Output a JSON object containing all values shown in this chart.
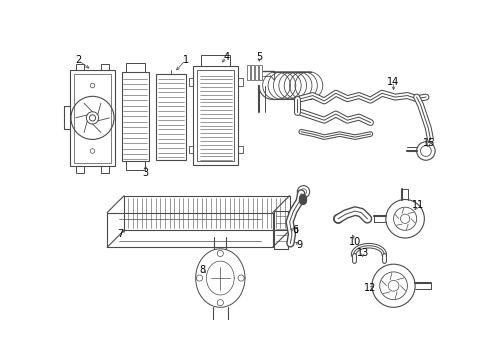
{
  "background_color": "#ffffff",
  "line_color": "#4a4a4a",
  "text_color": "#000000",
  "fig_width": 4.9,
  "fig_height": 3.6,
  "dpi": 100
}
